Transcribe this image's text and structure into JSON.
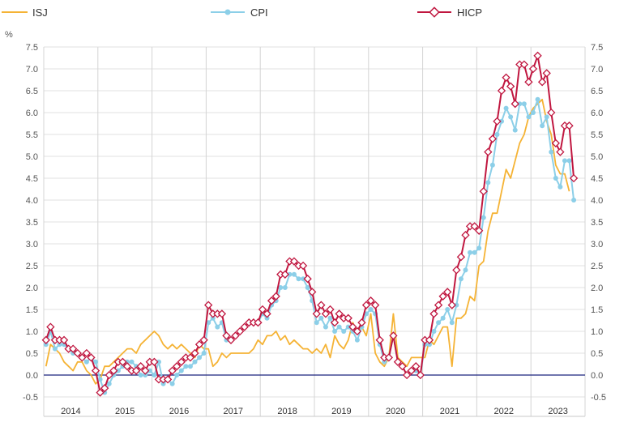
{
  "chart_data": {
    "type": "line",
    "unit_label": "%",
    "ylim": [
      -0.5,
      7.5
    ],
    "y_ticks": [
      -0.5,
      0.0,
      0.5,
      1.0,
      1.5,
      2.0,
      2.5,
      3.0,
      3.5,
      4.0,
      4.5,
      5.0,
      5.5,
      6.0,
      6.5,
      7.0,
      7.5
    ],
    "y_tick_labels": [
      "-0.5",
      "0.0",
      "0.5",
      "1.0",
      "1.5",
      "2.0",
      "2.5",
      "3.0",
      "3.5",
      "4.0",
      "4.5",
      "5.0",
      "5.5",
      "6.0",
      "6.5",
      "7.0",
      "7.5"
    ],
    "years": [
      "2014",
      "2015",
      "2016",
      "2017",
      "2018",
      "2019",
      "2020",
      "2021",
      "2022",
      "2023"
    ],
    "x_start": "2014-01",
    "grid": true,
    "legend_position": "top",
    "colors": {
      "ISJ": "#f5b335",
      "CPI": "#8ccfe8",
      "HICP": "#c0163f",
      "zero_line": "#1a237e"
    },
    "series": [
      {
        "name": "ISJ",
        "marker": "none",
        "values": [
          0.2,
          0.7,
          0.6,
          0.5,
          0.3,
          0.2,
          0.1,
          0.3,
          0.3,
          0.1,
          0.0,
          -0.2,
          -0.1,
          0.2,
          0.2,
          0.3,
          0.4,
          0.5,
          0.6,
          0.6,
          0.5,
          0.7,
          0.8,
          0.9,
          1.0,
          0.9,
          0.7,
          0.6,
          0.7,
          0.6,
          0.7,
          0.6,
          0.5,
          0.4,
          0.7,
          0.6,
          0.6,
          0.2,
          0.3,
          0.5,
          0.4,
          0.5,
          0.5,
          0.5,
          0.5,
          0.5,
          0.6,
          0.8,
          0.7,
          0.9,
          0.9,
          1.0,
          0.8,
          0.9,
          0.7,
          0.8,
          0.7,
          0.6,
          0.6,
          0.5,
          0.6,
          0.5,
          0.7,
          0.4,
          0.9,
          0.7,
          0.6,
          0.8,
          1.2,
          1.0,
          1.1,
          0.9,
          1.4,
          0.5,
          0.3,
          0.2,
          0.4,
          1.4,
          0.4,
          0.3,
          0.2,
          0.4,
          0.4,
          0.4,
          0.4,
          0.8,
          0.7,
          0.9,
          1.1,
          1.1,
          0.2,
          1.3,
          1.3,
          1.4,
          1.8,
          1.7,
          2.5,
          2.6,
          3.3,
          3.7,
          3.7,
          4.2,
          4.7,
          4.5,
          4.9,
          5.3,
          5.5,
          5.9,
          6.1,
          6.2,
          6.3,
          5.8,
          5.5,
          4.8,
          4.6,
          4.6,
          4.2
        ]
      },
      {
        "name": "CPI",
        "marker": "circle",
        "values": [
          0.7,
          1.0,
          0.6,
          0.7,
          0.7,
          0.6,
          0.5,
          0.5,
          0.4,
          0.3,
          0.4,
          0.3,
          -0.1,
          -0.4,
          -0.2,
          0.0,
          0.1,
          0.2,
          0.3,
          0.3,
          0.2,
          0.0,
          0.0,
          0.1,
          0.0,
          0.3,
          -0.2,
          -0.1,
          -0.2,
          0.0,
          0.1,
          0.2,
          0.2,
          0.3,
          0.4,
          0.5,
          1.2,
          1.3,
          1.1,
          1.2,
          0.8,
          0.8,
          0.9,
          1.0,
          1.1,
          1.2,
          1.2,
          1.2,
          1.4,
          1.3,
          1.6,
          1.7,
          2.0,
          2.0,
          2.3,
          2.3,
          2.2,
          2.2,
          2.0,
          1.7,
          1.2,
          1.3,
          1.1,
          1.3,
          1.0,
          1.1,
          1.0,
          1.1,
          1.0,
          0.8,
          1.1,
          1.4,
          1.5,
          1.4,
          0.7,
          0.3,
          0.4,
          0.9,
          0.3,
          0.2,
          0.0,
          0.1,
          0.1,
          0.0,
          0.7,
          0.7,
          1.0,
          1.2,
          1.3,
          1.5,
          1.2,
          1.6,
          2.2,
          2.4,
          2.8,
          2.8,
          2.9,
          3.6,
          4.4,
          4.8,
          5.5,
          5.8,
          6.1,
          5.9,
          5.6,
          6.2,
          6.2,
          5.9,
          6.0,
          6.3,
          5.7,
          5.9,
          5.1,
          4.5,
          4.3,
          4.9,
          4.9,
          4.0
        ]
      },
      {
        "name": "HICP",
        "marker": "diamond",
        "values": [
          0.8,
          1.1,
          0.8,
          0.8,
          0.8,
          0.6,
          0.6,
          0.5,
          0.4,
          0.5,
          0.4,
          0.1,
          -0.4,
          -0.3,
          0.0,
          0.1,
          0.3,
          0.3,
          0.2,
          0.1,
          0.1,
          0.2,
          0.1,
          0.3,
          0.3,
          -0.1,
          -0.1,
          -0.1,
          0.1,
          0.2,
          0.3,
          0.4,
          0.4,
          0.5,
          0.7,
          0.8,
          1.6,
          1.4,
          1.4,
          1.4,
          0.9,
          0.8,
          0.9,
          1.0,
          1.1,
          1.2,
          1.2,
          1.2,
          1.5,
          1.4,
          1.7,
          1.8,
          2.3,
          2.3,
          2.6,
          2.6,
          2.5,
          2.5,
          2.2,
          1.9,
          1.4,
          1.6,
          1.4,
          1.5,
          1.2,
          1.4,
          1.3,
          1.3,
          1.1,
          1.0,
          1.2,
          1.6,
          1.7,
          1.6,
          0.8,
          0.4,
          0.4,
          0.9,
          0.3,
          0.2,
          0.0,
          0.1,
          0.2,
          0.0,
          0.8,
          0.8,
          1.4,
          1.6,
          1.8,
          1.9,
          1.6,
          2.4,
          2.7,
          3.2,
          3.4,
          3.4,
          3.3,
          4.2,
          5.1,
          5.4,
          5.8,
          6.5,
          6.8,
          6.6,
          6.2,
          7.1,
          7.1,
          6.7,
          7.0,
          7.3,
          6.7,
          6.9,
          6.0,
          5.3,
          5.1,
          5.7,
          5.7,
          4.5
        ]
      }
    ]
  }
}
